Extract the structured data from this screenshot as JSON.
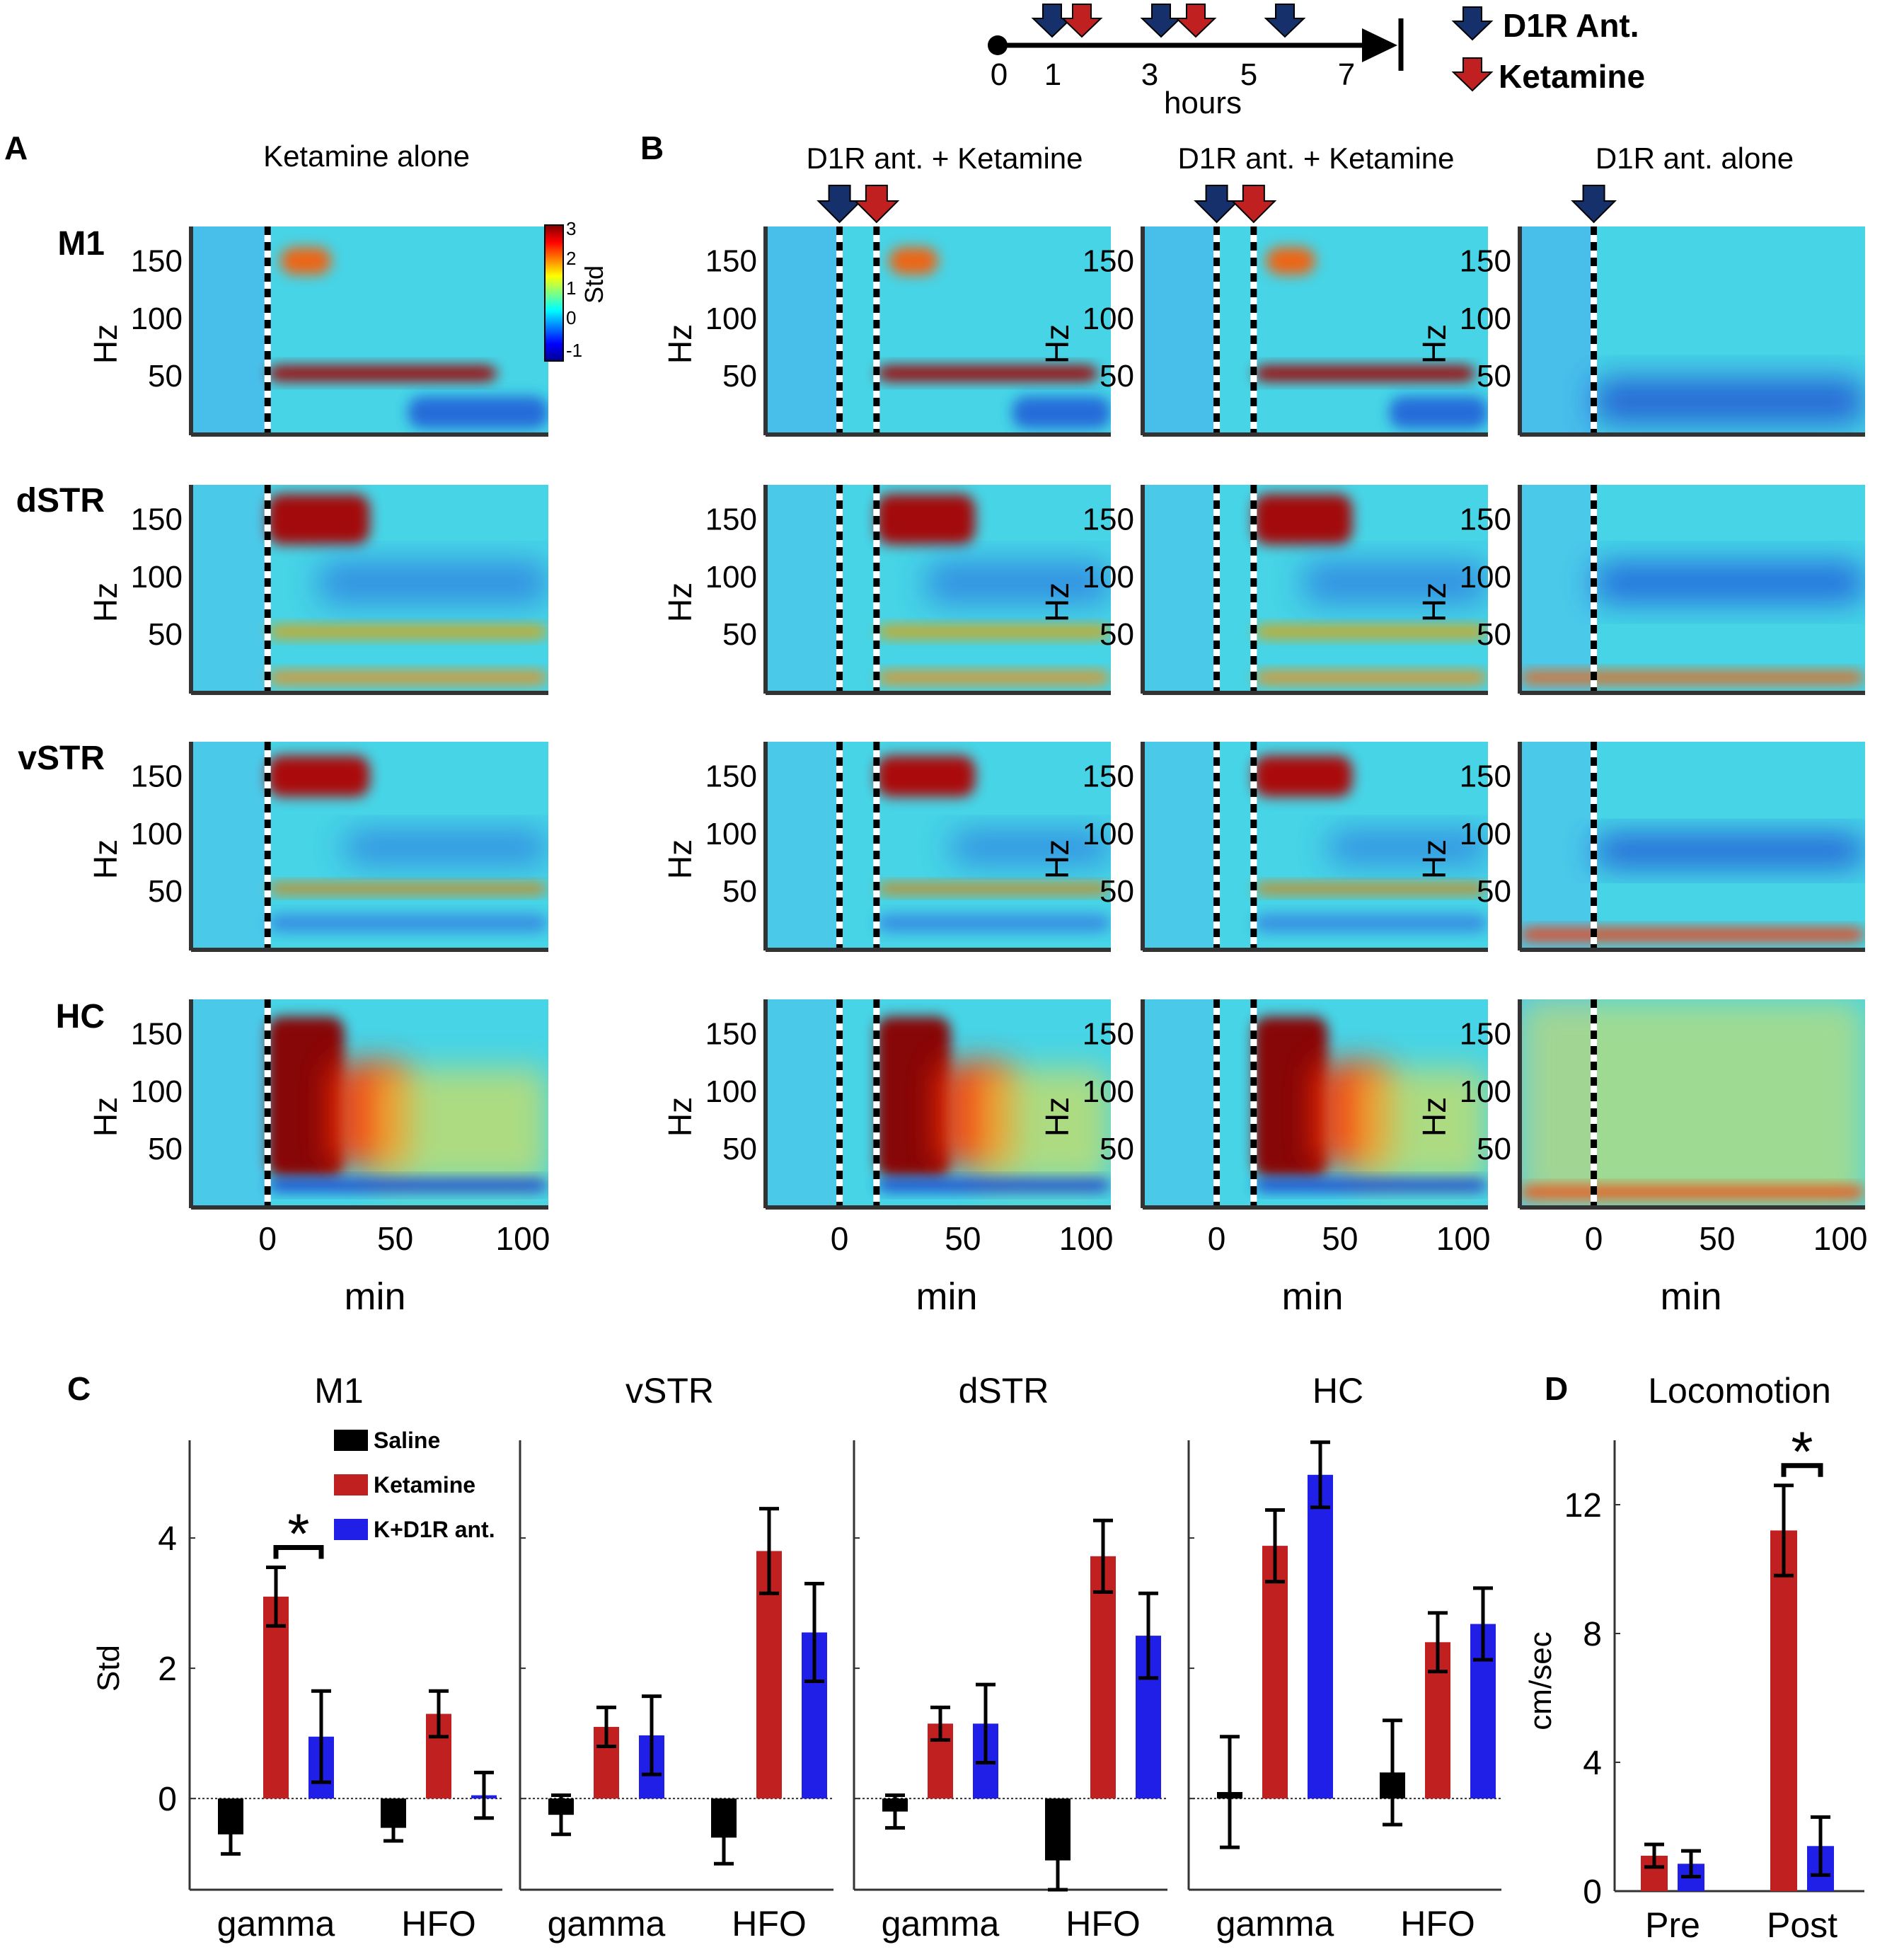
{
  "colors": {
    "saline": "#000000",
    "ketamine": "#c0201f",
    "kd1r": "#1f1fe8",
    "d1r_arrow": "#15306b",
    "ket_arrow": "#c0201f",
    "axis": "#333333"
  },
  "timeline": {
    "ticks": [
      "0",
      "1",
      "3",
      "5",
      "7"
    ],
    "xlabel": "hours",
    "legend": {
      "d1r": "D1R Ant.",
      "ket": "Ketamine"
    },
    "d1r_hours": [
      1.1,
      3.3,
      5.8
    ],
    "ket_hours": [
      1.7,
      4.0
    ]
  },
  "spectrograms": {
    "panel_a_letter": "A",
    "panel_b_letter": "B",
    "columns": [
      {
        "title": "Ketamine alone",
        "events": [
          {
            "min": 0,
            "type": "ket"
          }
        ]
      },
      {
        "title": "D1R ant. + Ketamine",
        "events": [
          {
            "min": 0,
            "type": "d1r"
          },
          {
            "min": 15,
            "type": "ket"
          }
        ]
      },
      {
        "title": "D1R ant. + Ketamine",
        "events": [
          {
            "min": 0,
            "type": "d1r"
          },
          {
            "min": 15,
            "type": "ket"
          }
        ]
      },
      {
        "title": "D1R ant. alone",
        "events": [
          {
            "min": 0,
            "type": "d1r"
          }
        ]
      }
    ],
    "rows": [
      "M1",
      "dSTR",
      "vSTR",
      "HC"
    ],
    "ylabel": "Hz",
    "yticks": [
      "150",
      "100",
      "50"
    ],
    "xticks": [
      "0",
      "50",
      "100"
    ],
    "xlabel": "min",
    "xlim": [
      -30,
      110
    ],
    "ylim": [
      0,
      180
    ],
    "colorbar": {
      "label": "Std",
      "ticks": [
        "3",
        "2",
        "1",
        "0",
        "-1"
      ],
      "range": [
        -1,
        3
      ]
    }
  },
  "chart_data": [
    {
      "type": "bar",
      "title": "M1",
      "categories": [
        "gamma",
        "HFO"
      ],
      "ylabel": "Std",
      "ylim": [
        -1.4,
        5.5
      ],
      "yticks": [
        "0",
        "2",
        "4"
      ],
      "series": [
        {
          "name": "Saline",
          "values": [
            -0.55,
            -0.45
          ],
          "errors": [
            0.3,
            0.2
          ]
        },
        {
          "name": "Ketamine",
          "values": [
            3.1,
            1.3
          ],
          "errors": [
            0.45,
            0.35
          ]
        },
        {
          "name": "K+D1R ant.",
          "values": [
            0.95,
            0.05
          ],
          "errors": [
            0.7,
            0.35
          ]
        }
      ],
      "significance": {
        "label": "*",
        "category": "gamma"
      }
    },
    {
      "type": "bar",
      "title": "vSTR",
      "categories": [
        "gamma",
        "HFO"
      ],
      "ylim": [
        -1.4,
        5.5
      ],
      "series": [
        {
          "name": "Saline",
          "values": [
            -0.25,
            -0.6
          ],
          "errors": [
            0.3,
            0.4
          ]
        },
        {
          "name": "Ketamine",
          "values": [
            1.1,
            3.8
          ],
          "errors": [
            0.3,
            0.65
          ]
        },
        {
          "name": "K+D1R ant.",
          "values": [
            0.97,
            2.55
          ],
          "errors": [
            0.6,
            0.75
          ]
        }
      ]
    },
    {
      "type": "bar",
      "title": "dSTR",
      "categories": [
        "gamma",
        "HFO"
      ],
      "ylim": [
        -1.4,
        5.5
      ],
      "series": [
        {
          "name": "Saline",
          "values": [
            -0.2,
            -0.95
          ],
          "errors": [
            0.25,
            0.45
          ]
        },
        {
          "name": "Ketamine",
          "values": [
            1.15,
            3.72
          ],
          "errors": [
            0.25,
            0.55
          ]
        },
        {
          "name": "K+D1R ant.",
          "values": [
            1.15,
            2.5
          ],
          "errors": [
            0.6,
            0.65
          ]
        }
      ]
    },
    {
      "type": "bar",
      "title": "HC",
      "categories": [
        "gamma",
        "HFO"
      ],
      "ylim": [
        -1.4,
        5.5
      ],
      "series": [
        {
          "name": "Saline",
          "values": [
            0.1,
            0.4
          ],
          "errors": [
            0.85,
            0.8
          ]
        },
        {
          "name": "Ketamine",
          "values": [
            3.88,
            2.4
          ],
          "errors": [
            0.55,
            0.45
          ]
        },
        {
          "name": "K+D1R ant.",
          "values": [
            4.97,
            2.68
          ],
          "errors": [
            0.5,
            0.55
          ]
        }
      ]
    },
    {
      "type": "bar",
      "title": "Locomotion",
      "categories": [
        "Pre",
        "Post"
      ],
      "ylabel": "cm/sec",
      "ylim": [
        0,
        14
      ],
      "yticks": [
        "0",
        "4",
        "8",
        "12"
      ],
      "series": [
        {
          "name": "Ketamine",
          "values": [
            1.1,
            11.2
          ],
          "errors": [
            0.35,
            1.4
          ]
        },
        {
          "name": "K+D1R ant.",
          "values": [
            0.85,
            1.4
          ],
          "errors": [
            0.4,
            0.9
          ]
        }
      ],
      "significance": {
        "label": "*",
        "category": "Post"
      }
    }
  ],
  "panel_c": {
    "letter": "C"
  },
  "panel_d": {
    "letter": "D"
  },
  "legend": [
    "Saline",
    "Ketamine",
    "K+D1R ant."
  ]
}
